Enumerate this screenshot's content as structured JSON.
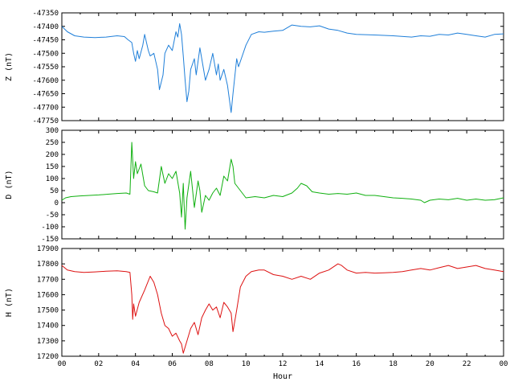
{
  "chart_data": [
    {
      "type": "line",
      "ylabel": "Z (nT)",
      "ylim": [
        -47750,
        -47350
      ],
      "yticks": [
        -47350,
        -47400,
        -47450,
        -47500,
        -47550,
        -47600,
        -47650,
        -47700,
        -47750
      ],
      "xlim": [
        0,
        24
      ],
      "series": [
        {
          "color": "#1f7fd9",
          "x": [
            0,
            0.3,
            0.7,
            1.2,
            1.8,
            2.4,
            3.0,
            3.4,
            3.6,
            3.8,
            3.9,
            4.0,
            4.1,
            4.2,
            4.4,
            4.5,
            4.7,
            4.8,
            5.0,
            5.2,
            5.3,
            5.5,
            5.6,
            5.8,
            6.0,
            6.2,
            6.3,
            6.4,
            6.5,
            6.6,
            6.7,
            6.8,
            6.9,
            7.0,
            7.2,
            7.3,
            7.5,
            7.6,
            7.8,
            8.0,
            8.2,
            8.4,
            8.5,
            8.6,
            8.8,
            9.0,
            9.2,
            9.3,
            9.5,
            9.6,
            9.8,
            10.0,
            10.3,
            10.7,
            11.0,
            11.5,
            12.0,
            12.5,
            13.0,
            13.5,
            14.0,
            14.5,
            15.0,
            15.5,
            16.0,
            17.0,
            18.0,
            19.0,
            19.5,
            20.0,
            20.5,
            21.0,
            21.5,
            22.0,
            22.5,
            23.0,
            23.5,
            24.0
          ],
          "values": [
            -47400,
            -47420,
            -47435,
            -47440,
            -47442,
            -47440,
            -47435,
            -47438,
            -47450,
            -47460,
            -47500,
            -47530,
            -47490,
            -47520,
            -47470,
            -47430,
            -47490,
            -47510,
            -47500,
            -47560,
            -47635,
            -47580,
            -47500,
            -47470,
            -47490,
            -47420,
            -47440,
            -47390,
            -47430,
            -47510,
            -47600,
            -47680,
            -47640,
            -47560,
            -47520,
            -47580,
            -47480,
            -47520,
            -47600,
            -47560,
            -47500,
            -47580,
            -47540,
            -47600,
            -47560,
            -47620,
            -47720,
            -47650,
            -47520,
            -47550,
            -47510,
            -47470,
            -47430,
            -47420,
            -47422,
            -47418,
            -47415,
            -47395,
            -47400,
            -47402,
            -47398,
            -47410,
            -47415,
            -47425,
            -47430,
            -47432,
            -47435,
            -47440,
            -47435,
            -47437,
            -47430,
            -47432,
            -47425,
            -47430,
            -47435,
            -47440,
            -47430,
            -47428
          ]
        }
      ]
    },
    {
      "type": "line",
      "ylabel": "D (nT)",
      "ylim": [
        -150,
        300
      ],
      "yticks": [
        300,
        250,
        200,
        150,
        100,
        50,
        0,
        -50,
        -100,
        -150
      ],
      "xlim": [
        0,
        24
      ],
      "series": [
        {
          "color": "#10b010",
          "x": [
            0,
            0.2,
            0.5,
            1.0,
            1.5,
            2.0,
            2.5,
            3.0,
            3.5,
            3.7,
            3.8,
            3.9,
            4.0,
            4.1,
            4.3,
            4.5,
            4.7,
            5.0,
            5.2,
            5.4,
            5.6,
            5.8,
            6.0,
            6.2,
            6.4,
            6.5,
            6.6,
            6.7,
            6.8,
            7.0,
            7.2,
            7.4,
            7.5,
            7.6,
            7.8,
            8.0,
            8.2,
            8.4,
            8.6,
            8.8,
            9.0,
            9.2,
            9.3,
            9.4,
            9.6,
            9.8,
            10.0,
            10.5,
            11.0,
            11.5,
            12.0,
            12.5,
            12.8,
            13.0,
            13.3,
            13.6,
            14.0,
            14.5,
            15.0,
            15.5,
            16.0,
            16.5,
            17.0,
            17.5,
            18.0,
            18.5,
            19.0,
            19.5,
            19.7,
            20.0,
            20.5,
            21.0,
            21.5,
            22.0,
            22.5,
            23.0,
            23.5,
            24.0
          ],
          "values": [
            10,
            20,
            25,
            28,
            30,
            32,
            35,
            38,
            40,
            35,
            250,
            100,
            170,
            120,
            160,
            70,
            50,
            45,
            40,
            150,
            80,
            120,
            100,
            130,
            40,
            -60,
            80,
            -110,
            20,
            130,
            -20,
            90,
            50,
            -40,
            30,
            10,
            40,
            60,
            30,
            110,
            90,
            180,
            150,
            80,
            60,
            40,
            20,
            25,
            20,
            30,
            25,
            40,
            60,
            80,
            70,
            45,
            40,
            35,
            38,
            35,
            40,
            30,
            30,
            25,
            20,
            18,
            15,
            10,
            0,
            10,
            15,
            12,
            18,
            10,
            15,
            10,
            12,
            20
          ]
        }
      ]
    },
    {
      "type": "line",
      "ylabel": "H (nT)",
      "xlabel": "Hour",
      "ylim": [
        17200,
        17900
      ],
      "yticks": [
        17900,
        17800,
        17700,
        17600,
        17500,
        17400,
        17300,
        17200
      ],
      "xlim": [
        0,
        24
      ],
      "xticks": [
        "00",
        "02",
        "04",
        "06",
        "08",
        "10",
        "12",
        "14",
        "16",
        "18",
        "20",
        "22",
        "00"
      ],
      "series": [
        {
          "color": "#dd1111",
          "x": [
            0,
            0.3,
            0.7,
            1.2,
            1.8,
            2.4,
            3.0,
            3.5,
            3.7,
            3.8,
            3.85,
            3.9,
            4.0,
            4.2,
            4.5,
            4.8,
            5.0,
            5.2,
            5.4,
            5.6,
            5.8,
            6.0,
            6.2,
            6.4,
            6.5,
            6.6,
            6.8,
            7.0,
            7.2,
            7.4,
            7.6,
            7.8,
            8.0,
            8.2,
            8.4,
            8.6,
            8.8,
            9.0,
            9.2,
            9.3,
            9.5,
            9.7,
            10.0,
            10.3,
            10.7,
            11.0,
            11.5,
            12.0,
            12.5,
            13.0,
            13.5,
            14.0,
            14.5,
            15.0,
            15.2,
            15.5,
            16.0,
            16.5,
            17.0,
            17.5,
            18.0,
            18.5,
            19.0,
            19.5,
            20.0,
            20.5,
            21.0,
            21.5,
            22.0,
            22.5,
            23.0,
            23.5,
            24.0
          ],
          "values": [
            17790,
            17760,
            17750,
            17745,
            17748,
            17752,
            17755,
            17750,
            17745,
            17600,
            17440,
            17540,
            17460,
            17550,
            17630,
            17720,
            17680,
            17600,
            17480,
            17400,
            17380,
            17330,
            17350,
            17300,
            17280,
            17220,
            17300,
            17380,
            17420,
            17340,
            17450,
            17500,
            17540,
            17500,
            17520,
            17450,
            17550,
            17520,
            17480,
            17360,
            17500,
            17650,
            17720,
            17750,
            17760,
            17760,
            17730,
            17720,
            17700,
            17720,
            17700,
            17740,
            17760,
            17800,
            17790,
            17760,
            17740,
            17745,
            17740,
            17742,
            17745,
            17750,
            17760,
            17770,
            17760,
            17775,
            17790,
            17770,
            17780,
            17790,
            17770,
            17760,
            17750
          ]
        }
      ]
    }
  ]
}
